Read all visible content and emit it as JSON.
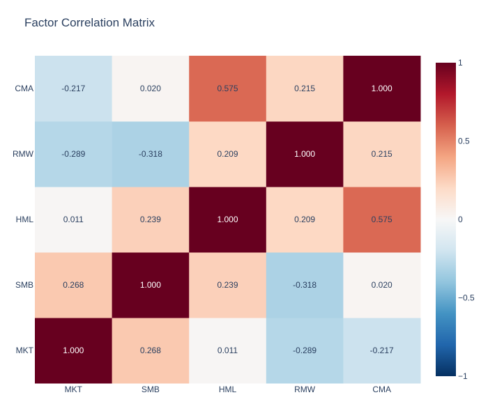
{
  "chart_data": {
    "type": "heatmap",
    "title": "Factor Correlation Matrix",
    "x_categories": [
      "MKT",
      "SMB",
      "HML",
      "RMW",
      "CMA"
    ],
    "y_categories": [
      "MKT",
      "SMB",
      "HML",
      "RMW",
      "CMA"
    ],
    "z": [
      [
        1.0,
        0.268,
        0.011,
        -0.289,
        -0.217
      ],
      [
        0.268,
        1.0,
        0.239,
        -0.318,
        0.02
      ],
      [
        0.011,
        0.239,
        1.0,
        0.209,
        0.575
      ],
      [
        -0.289,
        -0.318,
        0.209,
        1.0,
        0.215
      ],
      [
        -0.217,
        0.02,
        0.575,
        0.215,
        1.0
      ]
    ],
    "text": [
      [
        "1.000",
        "0.268",
        "0.011",
        "-0.289",
        "-0.217"
      ],
      [
        "0.268",
        "1.000",
        "0.239",
        "-0.318",
        "0.020"
      ],
      [
        "0.011",
        "0.239",
        "1.000",
        "0.209",
        "0.575"
      ],
      [
        "-0.289",
        "-0.318",
        "0.209",
        "1.000",
        "0.215"
      ],
      [
        "-0.217",
        "0.020",
        "0.575",
        "0.215",
        "1.000"
      ]
    ],
    "zmin": -1,
    "zmax": 1,
    "colorscale": [
      [
        0.0,
        "#053061"
      ],
      [
        0.1,
        "#2166ac"
      ],
      [
        0.2,
        "#4393c3"
      ],
      [
        0.3,
        "#92c5de"
      ],
      [
        0.4,
        "#d1e5f0"
      ],
      [
        0.5,
        "#f7f7f7"
      ],
      [
        0.6,
        "#fddbc7"
      ],
      [
        0.7,
        "#f4a582"
      ],
      [
        0.8,
        "#d6604d"
      ],
      [
        0.9,
        "#b2182b"
      ],
      [
        1.0,
        "#67001f"
      ]
    ],
    "colorbar_ticks": [
      1,
      0.5,
      0,
      -0.5,
      -1
    ],
    "colorbar_tick_labels": [
      "1",
      "0.5",
      "0",
      "−0.5",
      "−1"
    ]
  }
}
